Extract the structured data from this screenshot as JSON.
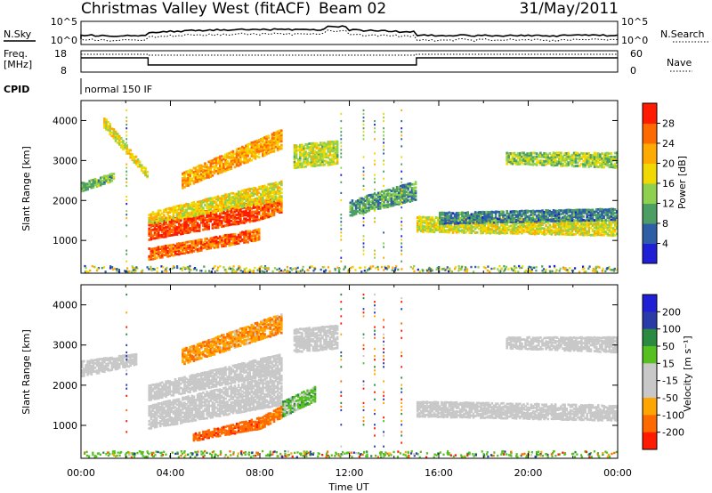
{
  "header": {
    "station": "Christmas Valley West (fitACF)",
    "beam": "Beam 02",
    "date": "31/May/2011"
  },
  "strips": {
    "nsky_label": "N.Sky",
    "nsearch_label": "N.Search",
    "freq_label_1": "Freq.",
    "freq_label_2": "[MHz]",
    "nave_label": "Nave",
    "cpid_label": "CPID",
    "cpid_value": "normal 150 IF",
    "noise_ticks_left": [
      "10^5",
      "10^0"
    ],
    "noise_ticks_right": [
      "10^5",
      "10^0"
    ],
    "freq_ticks": [
      "18",
      "8"
    ],
    "nave_ticks": [
      "60",
      "0"
    ]
  },
  "colors": {
    "power": [
      "#1f1fd6",
      "#2e5fa6",
      "#4d9e64",
      "#8fd14e",
      "#f0d800",
      "#ffaa00",
      "#ff6a00",
      "#ff1a00"
    ],
    "velocity": [
      "#ff1a00",
      "#ff6a00",
      "#ffa500",
      "#c8c8c8",
      "#c8c8c8",
      "#55c020",
      "#2a8a40",
      "#2a3aa8",
      "#1f1fd6"
    ],
    "ground_scatter": "#bebebe"
  },
  "chart_data": [
    {
      "type": "heatmap",
      "name": "power",
      "ylabel": "Slant Range [km]",
      "xlabel": "",
      "x_ticks": [
        "00:00",
        "04:00",
        "08:00",
        "12:00",
        "16:00",
        "20:00",
        "00:00"
      ],
      "xlim_hours": [
        0,
        24
      ],
      "y_ticks": [
        "1000",
        "2000",
        "3000",
        "4000"
      ],
      "ylim": [
        180,
        4500
      ],
      "colorbar": {
        "label": "Power [dB]",
        "ticks": [
          "4",
          "8",
          "12",
          "16",
          "20",
          "24",
          "28"
        ],
        "range": [
          0,
          32
        ]
      },
      "bands": [
        {
          "t0": 0.0,
          "t1": 1.5,
          "r0": [
            2200,
            2450
          ],
          "r1": [
            2500,
            2700
          ],
          "value": 12
        },
        {
          "t0": 1.0,
          "t1": 3.0,
          "r0": [
            3800,
            4100
          ],
          "r1": [
            2500,
            2700
          ],
          "value": 18
        },
        {
          "t0": 3.0,
          "t1": 8.0,
          "r0": [
            1000,
            1500
          ],
          "r1": [
            1500,
            2000
          ],
          "value": 29
        },
        {
          "t0": 8.0,
          "t1": 9.0,
          "r0": [
            1500,
            2000
          ],
          "r1": [
            1700,
            2100
          ],
          "value": 27
        },
        {
          "t0": 3.0,
          "t1": 8.0,
          "r0": [
            500,
            800
          ],
          "r1": [
            1000,
            1300
          ],
          "value": 26
        },
        {
          "t0": 4.5,
          "t1": 9.0,
          "r0": [
            2300,
            2700
          ],
          "r1": [
            3300,
            3800
          ],
          "value": 22
        },
        {
          "t0": 3.0,
          "t1": 9.0,
          "r0": [
            1400,
            1700
          ],
          "r1": [
            2000,
            2500
          ],
          "value": 18
        },
        {
          "t0": 9.5,
          "t1": 11.5,
          "r0": [
            2800,
            3400
          ],
          "r1": [
            2900,
            3500
          ],
          "value": 16
        },
        {
          "t0": 12.0,
          "t1": 15.0,
          "r0": [
            1600,
            2000
          ],
          "r1": [
            2000,
            2500
          ],
          "value": 10
        },
        {
          "t0": 15.0,
          "t1": 24.0,
          "r0": [
            1200,
            1600
          ],
          "r1": [
            1100,
            1500
          ],
          "value": 17
        },
        {
          "t0": 16.0,
          "t1": 24.0,
          "r0": [
            1400,
            1700
          ],
          "r1": [
            1500,
            1800
          ],
          "value": 8
        },
        {
          "t0": 19.0,
          "t1": 24.0,
          "r0": [
            2900,
            3200
          ],
          "r1": [
            2800,
            3200
          ],
          "value": 14
        }
      ]
    },
    {
      "type": "heatmap",
      "name": "velocity",
      "ylabel": "Slant Range [km]",
      "xlabel": "Time UT",
      "x_ticks": [
        "00:00",
        "04:00",
        "08:00",
        "12:00",
        "16:00",
        "20:00",
        "00:00"
      ],
      "xlim_hours": [
        0,
        24
      ],
      "y_ticks": [
        "1000",
        "2000",
        "3000",
        "4000"
      ],
      "ylim": [
        180,
        4500
      ],
      "colorbar": {
        "label": "Velocity [m s⁻¹]",
        "ticks": [
          "200",
          "100",
          "50",
          "15",
          "-15",
          "-50",
          "-100",
          "-200"
        ],
        "range": [
          -250,
          250
        ]
      },
      "bands": [
        {
          "t0": 0.0,
          "t1": 2.5,
          "r0": [
            2200,
            2600
          ],
          "r1": [
            2500,
            2800
          ],
          "value": 0
        },
        {
          "t0": 3.0,
          "t1": 9.0,
          "r0": [
            900,
            1500
          ],
          "r1": [
            1500,
            2300
          ],
          "value": 0
        },
        {
          "t0": 3.0,
          "t1": 9.0,
          "r0": [
            1600,
            2000
          ],
          "r1": [
            2300,
            2800
          ],
          "value": 0
        },
        {
          "t0": 5.0,
          "t1": 8.0,
          "r0": [
            600,
            800
          ],
          "r1": [
            900,
            1200
          ],
          "value": -80
        },
        {
          "t0": 8.0,
          "t1": 9.0,
          "r0": [
            900,
            1200
          ],
          "r1": [
            1200,
            1500
          ],
          "value": -70
        },
        {
          "t0": 4.5,
          "t1": 9.0,
          "r0": [
            2500,
            2900
          ],
          "r1": [
            3300,
            3800
          ],
          "value": -40
        },
        {
          "t0": 9.0,
          "t1": 10.5,
          "r0": [
            1200,
            1600
          ],
          "r1": [
            1600,
            2000
          ],
          "value": 30
        },
        {
          "t0": 9.5,
          "t1": 11.5,
          "r0": [
            2800,
            3400
          ],
          "r1": [
            2900,
            3500
          ],
          "value": 0
        },
        {
          "t0": 15.0,
          "t1": 24.0,
          "r0": [
            1200,
            1600
          ],
          "r1": [
            1100,
            1500
          ],
          "value": 0
        },
        {
          "t0": 19.0,
          "t1": 24.0,
          "r0": [
            2900,
            3200
          ],
          "r1": [
            2800,
            3200
          ],
          "value": 0
        }
      ]
    }
  ]
}
